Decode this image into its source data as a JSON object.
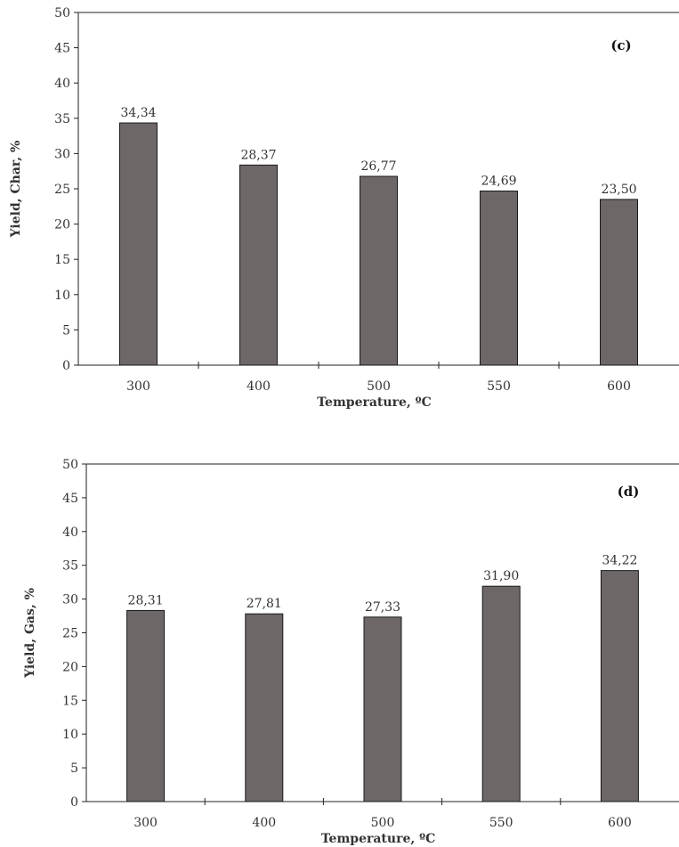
{
  "chart_data": [
    {
      "type": "bar",
      "panel_label": "(c)",
      "categories": [
        "300",
        "400",
        "500",
        "550",
        "600"
      ],
      "values": [
        34.34,
        28.37,
        26.77,
        24.69,
        23.5
      ],
      "data_labels": [
        "34,34",
        "28,37",
        "26,77",
        "24,69",
        "23,50"
      ],
      "xlabel": "Temperature, ºC",
      "ylabel": "Yield, Char, %",
      "ylim": [
        0,
        50
      ],
      "yticks": [
        0,
        5,
        10,
        15,
        20,
        25,
        30,
        35,
        40,
        45,
        50
      ],
      "bar_color": "#6e6767",
      "grid": false
    },
    {
      "type": "bar",
      "panel_label": "(d)",
      "categories": [
        "300",
        "400",
        "500",
        "550",
        "600"
      ],
      "values": [
        28.31,
        27.81,
        27.33,
        31.9,
        34.22
      ],
      "data_labels": [
        "28,31",
        "27,81",
        "27,33",
        "31,90",
        "34,22"
      ],
      "xlabel": "Temperature, ºC",
      "ylabel": "Yield, Gas, %",
      "ylim": [
        0,
        50
      ],
      "yticks": [
        0,
        5,
        10,
        15,
        20,
        25,
        30,
        35,
        40,
        45,
        50
      ],
      "bar_color": "#6e6767",
      "grid": false
    }
  ]
}
